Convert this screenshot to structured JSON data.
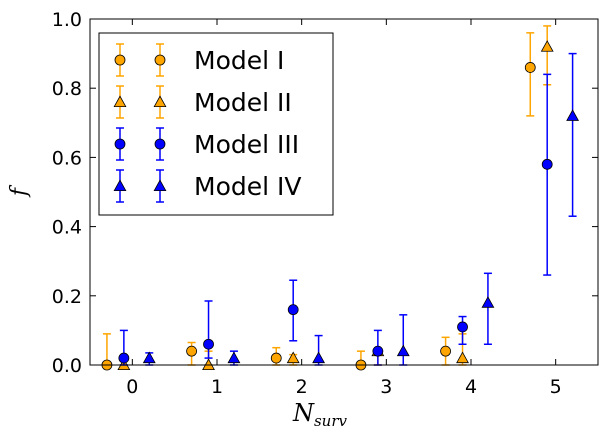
{
  "chart_data": {
    "type": "scatter",
    "title": "",
    "xlabel": "N",
    "xlabel_sub": "surv",
    "ylabel": "f",
    "xlim": [
      -0.5,
      5.5
    ],
    "ylim": [
      0.0,
      1.0
    ],
    "xticks": [
      0,
      1,
      2,
      3,
      4,
      5
    ],
    "xtick_labels": [
      "0",
      "1",
      "2",
      "3",
      "4",
      "5"
    ],
    "yticks": [
      0.0,
      0.2,
      0.4,
      0.6,
      0.8,
      1.0
    ],
    "ytick_labels": [
      "0.0",
      "0.2",
      "0.4",
      "0.6",
      "0.8",
      "1.0"
    ],
    "grid": false,
    "legend_position": "top-left",
    "x": [
      0,
      1,
      2,
      3,
      4,
      5
    ],
    "series": [
      {
        "name": "Model I",
        "marker": "circle",
        "color": "#FFA500",
        "errcolor": "#FFA500",
        "offset": -0.3,
        "values": [
          0.0,
          0.04,
          0.02,
          0.0,
          0.04,
          0.86
        ],
        "err_low": [
          0.0,
          0.0,
          0.0,
          0.0,
          0.0,
          0.72
        ],
        "err_high": [
          0.09,
          0.065,
          0.05,
          0.04,
          0.08,
          0.96
        ]
      },
      {
        "name": "Model II",
        "marker": "triangle",
        "color": "#FFA500",
        "errcolor": "#FFA500",
        "offset": -0.1,
        "values": [
          0.0,
          0.0,
          0.02,
          0.04,
          0.02,
          0.92
        ],
        "err_low": [
          0.0,
          0.0,
          0.0,
          0.0,
          0.0,
          0.81
        ],
        "err_high": [
          0.02,
          0.04,
          0.03,
          0.04,
          0.09,
          0.98
        ]
      },
      {
        "name": "Model III",
        "marker": "circle",
        "color": "#0000FF",
        "errcolor": "#0000FF",
        "offset": -0.1,
        "values": [
          0.02,
          0.06,
          0.16,
          0.04,
          0.11,
          0.58
        ],
        "err_low": [
          0.0,
          0.02,
          0.07,
          0.0,
          0.06,
          0.26
        ],
        "err_high": [
          0.1,
          0.185,
          0.245,
          0.1,
          0.14,
          0.84
        ]
      },
      {
        "name": "Model IV",
        "marker": "triangle",
        "color": "#0000FF",
        "errcolor": "#0000FF",
        "offset": 0.2,
        "values": [
          0.02,
          0.02,
          0.02,
          0.04,
          0.18,
          0.72
        ],
        "err_low": [
          0.0,
          0.0,
          0.0,
          0.0,
          0.06,
          0.43
        ],
        "err_high": [
          0.035,
          0.04,
          0.085,
          0.145,
          0.265,
          0.9
        ]
      }
    ]
  }
}
